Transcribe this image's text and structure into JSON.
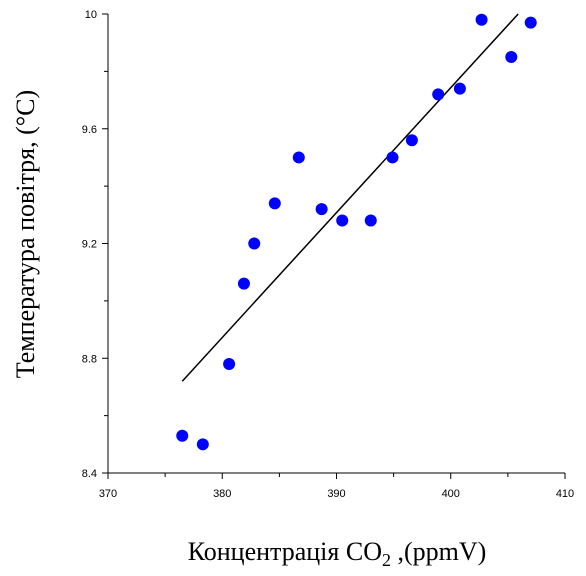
{
  "chart_data": {
    "type": "scatter",
    "title": "",
    "xlabel": "Концентрація CO2 ,(ppmV)",
    "xlabel_parts": {
      "before": "Концентрація CO",
      "subscript": "2",
      "after": " ,(ppmV)"
    },
    "ylabel": "Температура повітря, (°C)",
    "xlim": [
      370,
      410
    ],
    "ylim": [
      8.4,
      10
    ],
    "x_ticks": [
      "370",
      "380",
      "390",
      "400",
      "410"
    ],
    "y_ticks": [
      "8.4",
      "8.8",
      "9.2",
      "9.6",
      "10"
    ],
    "grid": false,
    "legend": "none",
    "marker_color": "#0000ff",
    "line_color": "#000000",
    "series": [
      {
        "points": [
          {
            "x": 376.5,
            "y": 8.53
          },
          {
            "x": 378.3,
            "y": 8.5
          },
          {
            "x": 380.6,
            "y": 8.78
          },
          {
            "x": 381.9,
            "y": 9.06
          },
          {
            "x": 382.8,
            "y": 9.2
          },
          {
            "x": 384.6,
            "y": 9.34
          },
          {
            "x": 386.7,
            "y": 9.5
          },
          {
            "x": 388.7,
            "y": 9.32
          },
          {
            "x": 390.5,
            "y": 9.28
          },
          {
            "x": 393.0,
            "y": 9.28
          },
          {
            "x": 394.9,
            "y": 9.5
          },
          {
            "x": 396.6,
            "y": 9.56
          },
          {
            "x": 398.9,
            "y": 9.72
          },
          {
            "x": 400.8,
            "y": 9.74
          },
          {
            "x": 402.7,
            "y": 9.98
          },
          {
            "x": 405.3,
            "y": 9.85
          },
          {
            "x": 407.0,
            "y": 9.97
          }
        ]
      }
    ],
    "trend_line": {
      "x": [
        376.5,
        405.9
      ],
      "y": [
        8.72,
        10.0
      ]
    }
  }
}
